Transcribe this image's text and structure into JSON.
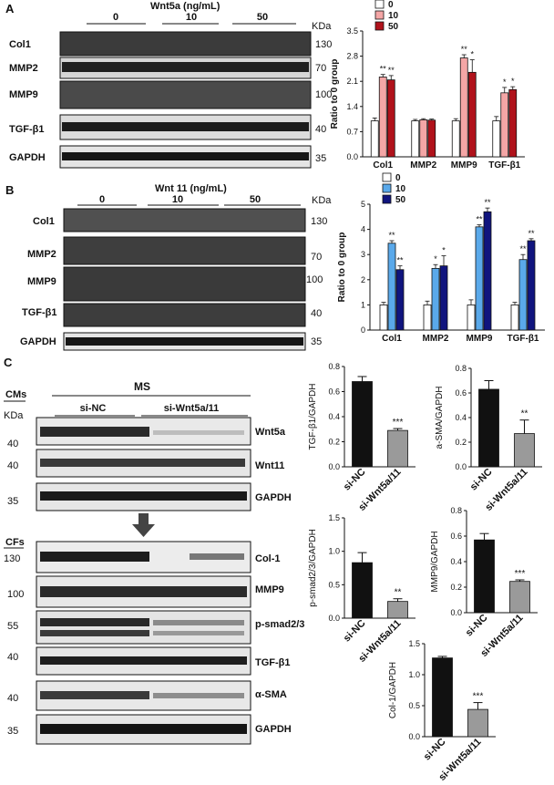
{
  "panels": {
    "A": {
      "letter": "A",
      "title": "Wnt5a  (ng/mL)",
      "kda": "KDa",
      "dose_labels": [
        "0",
        "10",
        "50"
      ],
      "bands": [
        {
          "name": "Col1",
          "size": "130"
        },
        {
          "name": "MMP2",
          "size": "70"
        },
        {
          "name": "MMP9",
          "size": "100"
        },
        {
          "name": "TGF-β1",
          "size": "40"
        },
        {
          "name": "GAPDH",
          "size": "35"
        }
      ]
    },
    "B": {
      "letter": "B",
      "title": "Wnt 11  (ng/mL)",
      "kda": "KDa",
      "dose_labels": [
        "0",
        "10",
        "50"
      ],
      "bands": [
        {
          "name": "Col1",
          "size": "130"
        },
        {
          "name": "MMP2",
          "size": "70"
        },
        {
          "name": "MMP9",
          "size": "100"
        },
        {
          "name": "TGF-β1",
          "size": "40"
        },
        {
          "name": "GAPDH",
          "size": "35"
        }
      ]
    },
    "C": {
      "letter": "C",
      "ms": "MS",
      "cms": "CMs",
      "cfs": "CFs",
      "kda": "KDa",
      "group_labels": [
        "si-NC",
        "si-Wnt5a/11"
      ],
      "cm_bands": [
        {
          "name": "Wnt5a",
          "size": "40"
        },
        {
          "name": "Wnt11",
          "size": "40"
        },
        {
          "name": "GAPDH",
          "size": "35"
        }
      ],
      "cf_bands": [
        {
          "name": "Col-1",
          "size": "130"
        },
        {
          "name": "MMP9",
          "size": "100"
        },
        {
          "name": "p-smad2/3",
          "size": "55"
        },
        {
          "name": "TGF-β1",
          "size": "40"
        },
        {
          "name": "α-SMA",
          "size": "40"
        },
        {
          "name": "GAPDH",
          "size": "35"
        }
      ]
    }
  },
  "colors": {
    "wnt5a_10": "#f4a6a6",
    "wnt5a_50": "#b0121b",
    "wnt11_10": "#5aa9ea",
    "wnt11_50": "#10147e",
    "control": "#ffffff",
    "black_bar": "#111111",
    "gray_bar": "#9a9a9a"
  },
  "chart_data": [
    {
      "type": "bar",
      "categories": [
        "Col1",
        "MMP2",
        "MMP9",
        "TGF-β1"
      ],
      "ylabel": "Ratio to 0 group",
      "ylim": [
        0,
        3.5
      ],
      "yticks": [
        "0.0",
        "0.7",
        "1.4",
        "2.1",
        "2.8",
        "3.5"
      ],
      "legend": [
        "0",
        "10",
        "50"
      ],
      "series": [
        {
          "name": "0",
          "values": [
            1.0,
            1.0,
            1.0,
            1.0
          ],
          "errors": [
            0.08,
            0.04,
            0.06,
            0.12
          ]
        },
        {
          "name": "10",
          "values": [
            2.22,
            1.03,
            2.75,
            1.78
          ],
          "errors": [
            0.07,
            0.03,
            0.09,
            0.15
          ]
        },
        {
          "name": "50",
          "values": [
            2.14,
            1.02,
            2.35,
            1.87
          ],
          "errors": [
            0.12,
            0.03,
            0.35,
            0.08
          ]
        }
      ],
      "annotations": [
        [
          "",
          "**",
          "**"
        ],
        [
          "",
          "",
          ""
        ],
        [
          "",
          "**",
          "*"
        ],
        [
          "",
          "*",
          "*"
        ]
      ]
    },
    {
      "type": "bar",
      "categories": [
        "Col1",
        "MMP2",
        "MMP9",
        "TGF-β1"
      ],
      "ylabel": "Ratio to 0 group",
      "ylim": [
        0,
        5
      ],
      "yticks": [
        "0",
        "1",
        "2",
        "3",
        "4",
        "5"
      ],
      "legend": [
        "0",
        "10",
        "50"
      ],
      "series": [
        {
          "name": "0",
          "values": [
            1.0,
            1.0,
            1.0,
            1.0
          ],
          "errors": [
            0.1,
            0.15,
            0.2,
            0.1
          ]
        },
        {
          "name": "10",
          "values": [
            3.45,
            2.45,
            4.1,
            2.8
          ],
          "errors": [
            0.1,
            0.15,
            0.08,
            0.2
          ]
        },
        {
          "name": "50",
          "values": [
            2.4,
            2.55,
            4.7,
            3.55
          ],
          "errors": [
            0.15,
            0.4,
            0.15,
            0.08
          ]
        }
      ],
      "annotations": [
        [
          "",
          "**",
          "**"
        ],
        [
          "",
          "*",
          "*"
        ],
        [
          "",
          "**",
          "**"
        ],
        [
          "",
          "**",
          "**"
        ]
      ]
    },
    {
      "type": "bar",
      "categories": [
        "si-NC",
        "si-Wnt5a/11"
      ],
      "ylabel": "TGF-β1/GAPDH",
      "ylim": [
        0,
        0.8
      ],
      "yticks": [
        "0.0",
        "0.2",
        "0.4",
        "0.6",
        "0.8"
      ],
      "values": [
        0.68,
        0.29
      ],
      "errors": [
        0.04,
        0.015
      ],
      "annotations": [
        "",
        "***"
      ]
    },
    {
      "type": "bar",
      "categories": [
        "si-NC",
        "si-Wnt5a/11"
      ],
      "ylabel": "a-SMA/GAPDH",
      "ylim": [
        0,
        0.8
      ],
      "yticks": [
        "0.0",
        "0.2",
        "0.4",
        "0.6",
        "0.8"
      ],
      "values": [
        0.63,
        0.27
      ],
      "errors": [
        0.07,
        0.11
      ],
      "annotations": [
        "",
        "**"
      ]
    },
    {
      "type": "bar",
      "categories": [
        "si-NC",
        "si-Wnt5a/11"
      ],
      "ylabel": "p-smad2/3/GAPDH",
      "ylim": [
        0,
        1.5
      ],
      "yticks": [
        "0.0",
        "0.5",
        "1.0",
        "1.5"
      ],
      "values": [
        0.83,
        0.25
      ],
      "errors": [
        0.15,
        0.04
      ],
      "annotations": [
        "",
        "**"
      ]
    },
    {
      "type": "bar",
      "categories": [
        "si-NC",
        "si-Wnt5a/11"
      ],
      "ylabel": "MMP9/GAPDH",
      "ylim": [
        0,
        0.8
      ],
      "yticks": [
        "0.0",
        "0.2",
        "0.4",
        "0.6",
        "0.8"
      ],
      "values": [
        0.57,
        0.245
      ],
      "errors": [
        0.05,
        0.012
      ],
      "annotations": [
        "",
        "***"
      ]
    },
    {
      "type": "bar",
      "categories": [
        "si-NC",
        "si-Wnt5a/11"
      ],
      "ylabel": "Col-1/GAPDH",
      "ylim": [
        0,
        1.5
      ],
      "yticks": [
        "0.0",
        "0.5",
        "1.0",
        "1.5"
      ],
      "values": [
        1.27,
        0.44
      ],
      "errors": [
        0.025,
        0.11
      ],
      "annotations": [
        "",
        "***"
      ]
    }
  ]
}
